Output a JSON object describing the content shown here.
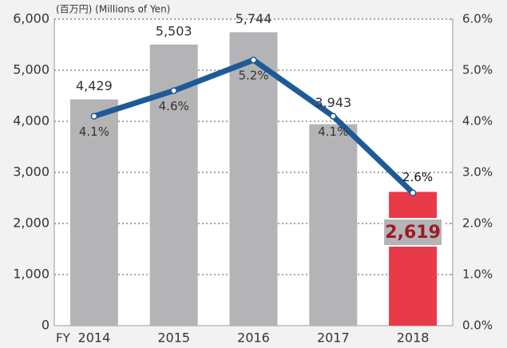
{
  "chart_data": {
    "type": "bar",
    "subtitle": "(百万円) (Millions of Yen)",
    "x_label": "FY",
    "categories": [
      "2014",
      "2015",
      "2016",
      "2017",
      "2018"
    ],
    "values": [
      4429,
      5503,
      5744,
      3943,
      2619
    ],
    "value_labels": [
      "4,429",
      "5,503",
      "5,744",
      "3,943",
      "2,619"
    ],
    "colors": [
      "#b4b4b6",
      "#b4b4b6",
      "#b4b4b6",
      "#b4b4b6",
      "#e83a48"
    ],
    "line": {
      "values": [
        4.1,
        4.6,
        5.2,
        4.1,
        2.6
      ],
      "value_labels": [
        "4.1%",
        "4.6%",
        "5.2%",
        "4.1%",
        "2.6%"
      ],
      "color": "#1d5b98",
      "axis": "y2"
    },
    "ylim": [
      0,
      6000
    ],
    "yticks": [
      0,
      {
        "value": 1000,
        "label": "1,000"
      },
      {
        "value": 2000,
        "label": "2,000"
      },
      {
        "value": 3000,
        "label": "3,000"
      },
      {
        "value": 4000,
        "label": "4,000"
      },
      {
        "value": 5000,
        "label": "5,000"
      },
      {
        "value": 6000,
        "label": "6,000"
      }
    ],
    "y2lim": [
      0,
      6
    ],
    "y2ticks": [
      {
        "value": 0,
        "label": "0.0%"
      },
      {
        "value": 1,
        "label": "1.0%"
      },
      {
        "value": 2,
        "label": "2.0%"
      },
      {
        "value": 3,
        "label": "3.0%"
      },
      {
        "value": 4,
        "label": "4.0%"
      },
      {
        "value": 5,
        "label": "5.0%"
      },
      {
        "value": 6,
        "label": "6.0%"
      }
    ],
    "grid": true
  }
}
